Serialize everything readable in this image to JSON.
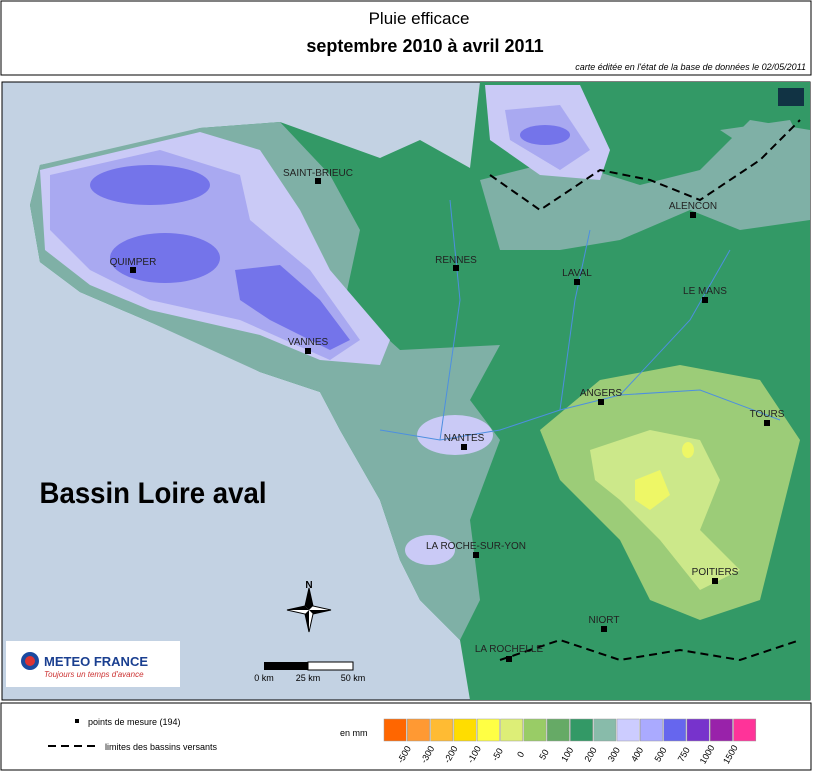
{
  "header": {
    "title": "Pluie efficace",
    "subtitle": "septembre 2010 à avril 2011",
    "note": "carte éditée en l'état de la base de données le 02/05/2011"
  },
  "map": {
    "basin": "Bassin Loire aval",
    "cities": [
      "SAINT-BRIEUC",
      "RENNES",
      "QUIMPER",
      "VANNES",
      "NANTES",
      "LAVAL",
      "ANGERS",
      "ALENCON",
      "LE MANS",
      "TOURS",
      "LA ROCHE-SUR-YON",
      "NIORT",
      "POITIERS",
      "LA ROCHELLE"
    ],
    "north": "N",
    "scale": [
      "0 km",
      "25 km",
      "50 km"
    ],
    "logo": {
      "name": "METEO FRANCE",
      "slogan": "Toujours un temps d'avance"
    }
  },
  "legend": {
    "points": "points de mesure (194)",
    "limits": "limites des bassins versants",
    "unit": "en mm",
    "values": [
      -500,
      -300,
      -200,
      -100,
      -50,
      0,
      50,
      100,
      200,
      300,
      400,
      500,
      750,
      1000,
      1500
    ],
    "colors": [
      "#ff6600",
      "#ff9933",
      "#ffbb33",
      "#ffdd00",
      "#ffff44",
      "#ddee77",
      "#99cc66",
      "#66aa66",
      "#339966",
      "#88bbaa",
      "#ccccff",
      "#aaaaff",
      "#6666ee",
      "#7733cc",
      "#9922aa",
      "#ff3399"
    ]
  }
}
